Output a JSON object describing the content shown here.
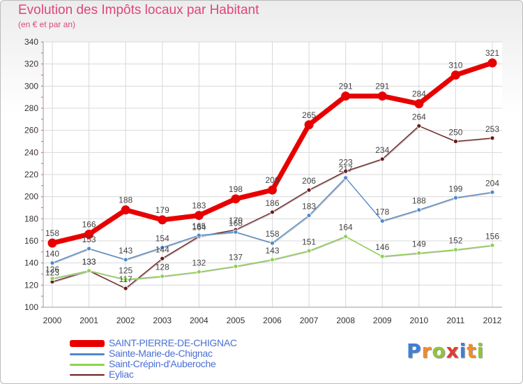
{
  "title": "Evolution des Impôts locaux par Habitant",
  "subtitle": "(en € et par an)",
  "logo": {
    "text": "Proxiti",
    "colors": [
      "#3f7fd6",
      "#f28c28",
      "#8fc53a",
      "#e03c31",
      "#3f7fd6",
      "#f28c28",
      "#8fc53a"
    ]
  },
  "chart_data": {
    "type": "line",
    "title": "Evolution des Impôts locaux par Habitant",
    "subtitle": "(en € et par an)",
    "xlabel": "",
    "ylabel": "",
    "ylim": [
      100,
      340
    ],
    "yticks": [
      100,
      120,
      140,
      160,
      180,
      200,
      220,
      240,
      260,
      280,
      300,
      320,
      340
    ],
    "grid": true,
    "legend_position": "bottom-left",
    "x": [
      "2000",
      "2001",
      "2002",
      "2003",
      "2004",
      "2005",
      "2006",
      "2007",
      "2008",
      "2009",
      "2010",
      "2011",
      "2012"
    ],
    "series": [
      {
        "name": "SAINT-PIERRE-DE-CHIGNAC",
        "color": "#e80000",
        "values": [
          158,
          166,
          188,
          179,
          183,
          198,
          206,
          265,
          291,
          291,
          284,
          310,
          321
        ]
      },
      {
        "name": "Sainte-Marie-de-Chignac",
        "color": "#4f89cc",
        "values": [
          140,
          153,
          143,
          154,
          165,
          168,
          158,
          183,
          217,
          178,
          188,
          199,
          204
        ]
      },
      {
        "name": "Saint-Crépin-d'Auberoche",
        "color": "#8fd34c",
        "values": [
          126,
          133,
          125,
          128,
          132,
          137,
          143,
          151,
          164,
          146,
          149,
          152,
          156
        ]
      },
      {
        "name": "Eyliac",
        "color": "#6b1a1a",
        "values": [
          123,
          133,
          117,
          144,
          164,
          170,
          186,
          206,
          223,
          234,
          264,
          250,
          253
        ]
      }
    ]
  }
}
